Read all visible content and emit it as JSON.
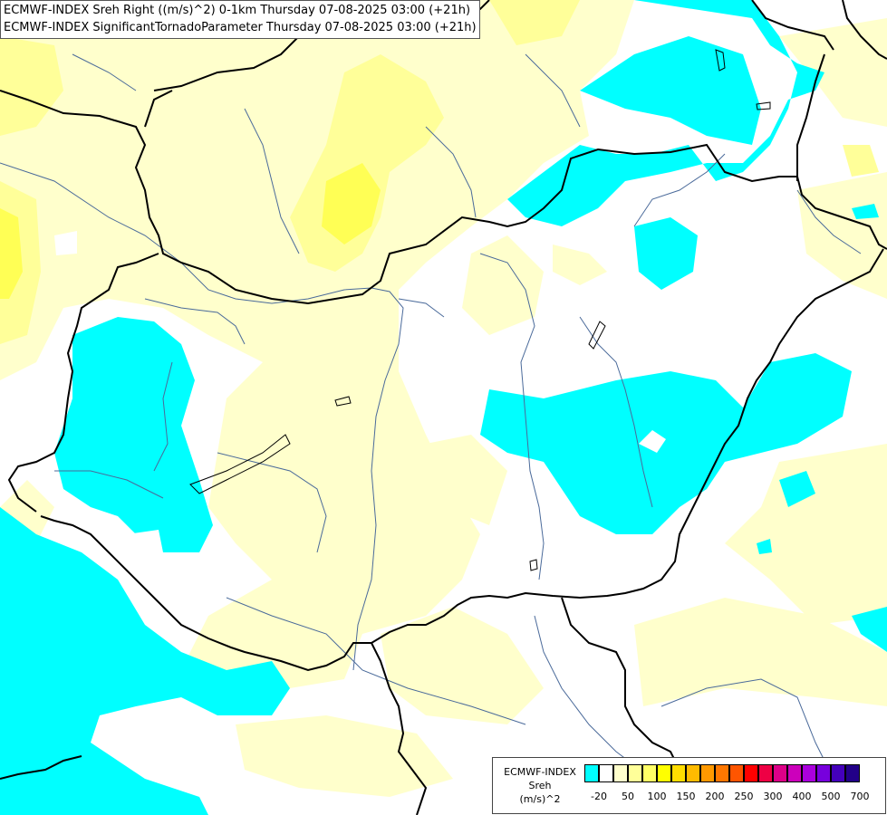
{
  "title": {
    "line1": "ECMWF-INDEX Sreh Right ((m/s)^2) 0-1km Thursday 07-08-2025 03:00 (+21h)",
    "line2": "ECMWF-INDEX SignificantTornadoParameter Thursday 07-08-2025 03:00 (+21h)"
  },
  "legend": {
    "model": "ECMWF-INDEX",
    "variable": "Sreh",
    "unit": "(m/s)^2",
    "colors": [
      "#00ffff",
      "#ffffff",
      "#ffffcc",
      "#ffff99",
      "#ffff66",
      "#ffff00",
      "#ffdd00",
      "#ffbb00",
      "#ff9900",
      "#ff7700",
      "#ff5500",
      "#ff0000",
      "#ee0044",
      "#dd0088",
      "#cc00bb",
      "#aa00dd",
      "#7700dd",
      "#4400bb",
      "#220088"
    ],
    "ticks": [
      "-20",
      "50",
      "100",
      "150",
      "200",
      "250",
      "300",
      "400",
      "500",
      "700"
    ]
  },
  "map_colors": {
    "cyan": "#00ffff",
    "pale_yellow": "#ffffcc",
    "light_yellow": "#ffff99",
    "yellow": "#ffff55",
    "bright_yellow": "#ffff00",
    "border": "#000000",
    "river": "#4a6a9a"
  }
}
